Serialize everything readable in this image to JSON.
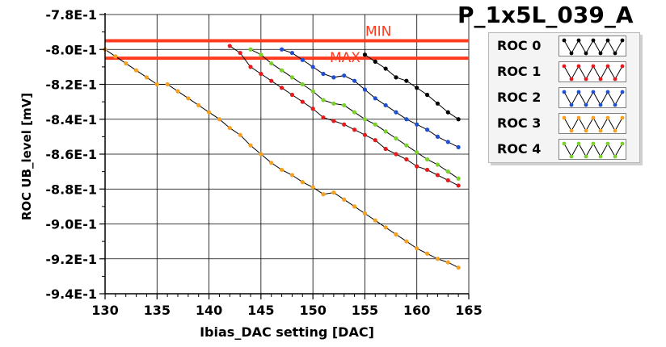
{
  "chart_data": {
    "type": "line",
    "title": "P_1x5L_039_A",
    "xlabel": "Ibias_DAC setting [DAC]",
    "ylabel": "ROC UB_level [mV]",
    "xlim": [
      130,
      165
    ],
    "ylim": [
      -0.94,
      -0.78
    ],
    "x_ticks": [
      130,
      135,
      140,
      145,
      150,
      155,
      160,
      165
    ],
    "x_tick_labels": [
      "130",
      "135",
      "140",
      "145",
      "150",
      "155",
      "160",
      "165"
    ],
    "y_ticks": [
      -0.78,
      -0.8,
      -0.82,
      -0.84,
      -0.86,
      -0.88,
      -0.9,
      -0.92,
      -0.94
    ],
    "y_tick_labels": [
      "-7.8E-1",
      "-8.0E-1",
      "-8.2E-1",
      "-8.4E-1",
      "-8.6E-1",
      "-8.8E-1",
      "-9.0E-1",
      "-9.2E-1",
      "-9.4E-1"
    ],
    "grid": true,
    "legend_position": "right",
    "reference_lines": [
      {
        "label": "MIN",
        "y": -0.795,
        "color": "#ff3b1f"
      },
      {
        "label": "MAX",
        "y": -0.805,
        "color": "#ff3b1f"
      }
    ],
    "series": [
      {
        "name": "ROC 0",
        "color": "#000000",
        "x": [
          155,
          156,
          157,
          158,
          159,
          160,
          161,
          162,
          163,
          164
        ],
        "y": [
          -0.803,
          -0.807,
          -0.811,
          -0.816,
          -0.818,
          -0.822,
          -0.826,
          -0.831,
          -0.836,
          -0.84
        ]
      },
      {
        "name": "ROC 1",
        "color": "#e41a1c",
        "x": [
          142,
          143,
          144,
          145,
          146,
          147,
          148,
          149,
          150,
          151,
          152,
          153,
          154,
          155,
          156,
          157,
          158,
          159,
          160,
          161,
          162,
          163,
          164
        ],
        "y": [
          -0.798,
          -0.802,
          -0.81,
          -0.814,
          -0.818,
          -0.822,
          -0.826,
          -0.83,
          -0.834,
          -0.839,
          -0.841,
          -0.843,
          -0.846,
          -0.849,
          -0.852,
          -0.857,
          -0.86,
          -0.863,
          -0.867,
          -0.869,
          -0.872,
          -0.875,
          -0.878
        ]
      },
      {
        "name": "ROC 2",
        "color": "#1f4fd0",
        "x": [
          147,
          148,
          149,
          150,
          151,
          152,
          153,
          154,
          155,
          156,
          157,
          158,
          159,
          160,
          161,
          162,
          163,
          164
        ],
        "y": [
          -0.8,
          -0.802,
          -0.806,
          -0.81,
          -0.814,
          -0.816,
          -0.815,
          -0.818,
          -0.823,
          -0.828,
          -0.832,
          -0.836,
          -0.84,
          -0.843,
          -0.846,
          -0.85,
          -0.853,
          -0.856
        ]
      },
      {
        "name": "ROC 3",
        "color": "#f5a020",
        "x": [
          130,
          131,
          132,
          133,
          134,
          135,
          136,
          137,
          138,
          139,
          140,
          141,
          142,
          143,
          144,
          145,
          146,
          147,
          148,
          149,
          150,
          151,
          152,
          153,
          154,
          155,
          156,
          157,
          158,
          159,
          160,
          161,
          162,
          163,
          164
        ],
        "y": [
          -0.8,
          -0.804,
          -0.808,
          -0.812,
          -0.816,
          -0.82,
          -0.82,
          -0.824,
          -0.828,
          -0.832,
          -0.836,
          -0.84,
          -0.845,
          -0.849,
          -0.855,
          -0.86,
          -0.865,
          -0.869,
          -0.872,
          -0.876,
          -0.879,
          -0.883,
          -0.882,
          -0.886,
          -0.89,
          -0.894,
          -0.898,
          -0.902,
          -0.906,
          -0.91,
          -0.914,
          -0.917,
          -0.92,
          -0.922,
          -0.925
        ]
      },
      {
        "name": "ROC 4",
        "color": "#7ad12a",
        "x": [
          144,
          145,
          146,
          147,
          148,
          149,
          150,
          151,
          152,
          153,
          154,
          155,
          156,
          157,
          158,
          159,
          160,
          161,
          162,
          163,
          164
        ],
        "y": [
          -0.8,
          -0.803,
          -0.808,
          -0.812,
          -0.816,
          -0.82,
          -0.824,
          -0.829,
          -0.831,
          -0.832,
          -0.836,
          -0.84,
          -0.843,
          -0.847,
          -0.851,
          -0.855,
          -0.859,
          -0.863,
          -0.866,
          -0.87,
          -0.874
        ]
      }
    ]
  }
}
